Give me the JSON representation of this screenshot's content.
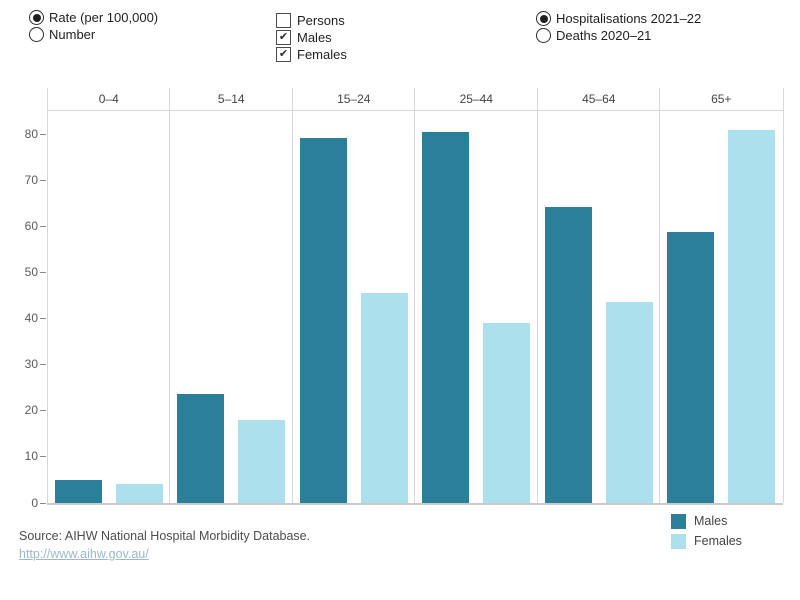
{
  "controls": {
    "measure_radio_group": {
      "options": [
        {
          "label": "Rate (per 100,000)",
          "selected": true
        },
        {
          "label": "Number",
          "selected": false
        }
      ]
    },
    "sex_checkbox_group": {
      "options": [
        {
          "label": "Persons",
          "checked": false
        },
        {
          "label": "Males",
          "checked": true
        },
        {
          "label": "Females",
          "checked": true
        }
      ]
    },
    "dataset_radio_group": {
      "options": [
        {
          "label": "Hospitalisations 2021–22",
          "selected": true
        },
        {
          "label": "Deaths 2020–21",
          "selected": false
        }
      ]
    }
  },
  "chart_data": {
    "type": "bar",
    "title": "",
    "categories": [
      "0–4",
      "5–14",
      "15–24",
      "25–44",
      "45–64",
      "65+"
    ],
    "series": [
      {
        "name": "Males",
        "color": "#2b7f98",
        "values": [
          4.8,
          23.5,
          79.0,
          80.4,
          64.1,
          58.7
        ]
      },
      {
        "name": "Females",
        "color": "#ace0ec",
        "values": [
          4.0,
          17.8,
          45.5,
          38.9,
          43.5,
          80.8
        ]
      }
    ],
    "xlabel": "",
    "ylabel": "",
    "yticks": [
      0,
      10,
      20,
      30,
      40,
      50,
      60,
      70,
      80
    ],
    "ylim": [
      0,
      85
    ],
    "grid": false,
    "legend_position": "bottom-right",
    "legend": [
      "Males",
      "Females"
    ]
  },
  "footer": {
    "source": "Source: AIHW National Hospital Morbidity Database.",
    "link": "http://www.aihw.gov.au/"
  },
  "colors": {
    "males_bar": "#2b7f98",
    "females_bar": "#ace0ec",
    "pane_border": "#d9d9d9",
    "axis_line": "#c9c9c9",
    "tick_text": "#5a5a5a",
    "header_text": "#444444",
    "control_text": "#1f1f1f",
    "link_text": "#9cb9c6"
  }
}
